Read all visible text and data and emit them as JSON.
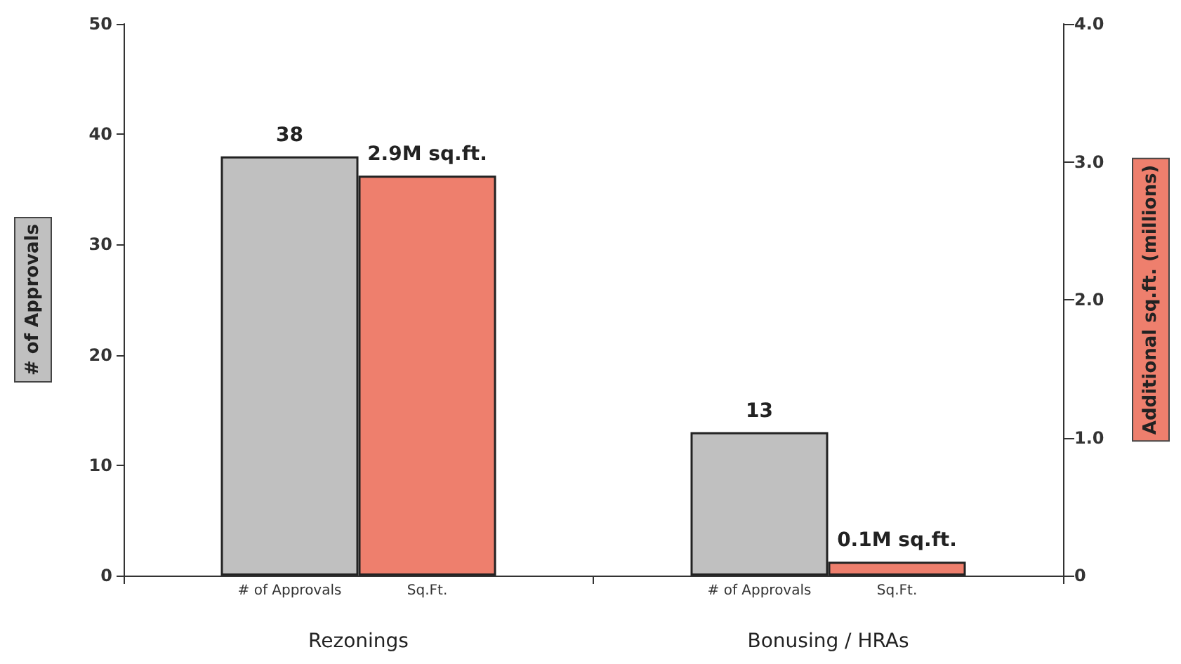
{
  "chart_data": {
    "type": "bar",
    "categories": [
      "Rezonings",
      "Bonusing / HRAs"
    ],
    "ylabel": "# of Approvals",
    "y2label": "Additional sq.ft. (millions)",
    "ylim": [
      0,
      50
    ],
    "yticks": [
      0,
      10,
      20,
      30,
      40,
      50
    ],
    "y2lim": [
      0,
      4
    ],
    "y2ticks": [
      0,
      {
        "value": 1,
        "label": "1.0"
      },
      {
        "value": 2,
        "label": "2.0"
      },
      {
        "value": 3,
        "label": "3.0"
      },
      {
        "value": 4,
        "label": "4.0"
      }
    ],
    "series": [
      {
        "name": "# of Approvals",
        "color": "#c0c0c0",
        "values": [
          38,
          13
        ],
        "value_labels": [
          "38",
          "13"
        ]
      },
      {
        "name": "Sq.Ft.",
        "color": "#ee7f6d",
        "values": [
          2.9,
          0.1
        ],
        "axis": "y2",
        "value_labels": [
          "2.9M sq.ft.",
          "0.1M sq.ft."
        ]
      }
    ],
    "grid": false,
    "legend": false
  }
}
